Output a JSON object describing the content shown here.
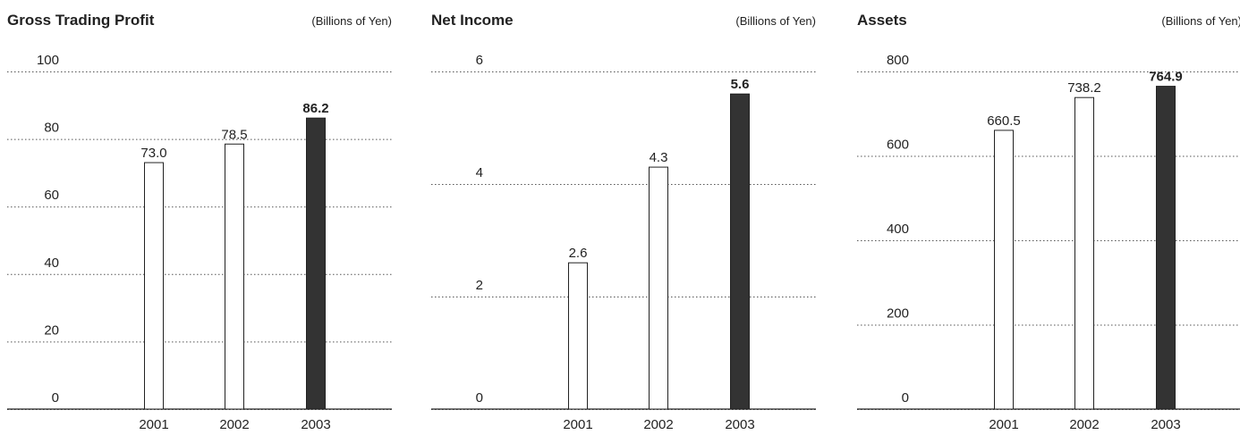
{
  "chart_data": [
    {
      "type": "bar",
      "title": "Gross Trading Profit",
      "subtitle": "(Billions of Yen)",
      "categories": [
        "2001",
        "2002",
        "2003"
      ],
      "values": [
        73.0,
        78.5,
        86.2
      ],
      "value_labels": [
        "73.0",
        "78.5",
        "86.2"
      ],
      "colors": [
        "#ffffff",
        "#ffffff",
        "#333333"
      ],
      "ylim": [
        0,
        100
      ],
      "yticks": [
        0,
        20,
        40,
        60,
        80,
        100
      ],
      "grid": true
    },
    {
      "type": "bar",
      "title": "Net Income",
      "subtitle": "(Billions of Yen)",
      "categories": [
        "2001",
        "2002",
        "2003"
      ],
      "values": [
        2.6,
        4.3,
        5.6
      ],
      "colors": [
        "#ffffff",
        "#ffffff",
        "#333333"
      ],
      "ylim": [
        0,
        6
      ],
      "yticks": [
        0,
        2,
        4,
        6
      ],
      "grid": true
    },
    {
      "type": "bar",
      "title": "Assets",
      "subtitle": "(Billions of Yen)",
      "categories": [
        "2001",
        "2002",
        "2003"
      ],
      "values": [
        660.5,
        738.2,
        764.9
      ],
      "colors": [
        "#ffffff",
        "#ffffff",
        "#333333"
      ],
      "ylim": [
        0,
        800
      ],
      "yticks": [
        0,
        200,
        400,
        600,
        800
      ],
      "grid": true
    }
  ]
}
